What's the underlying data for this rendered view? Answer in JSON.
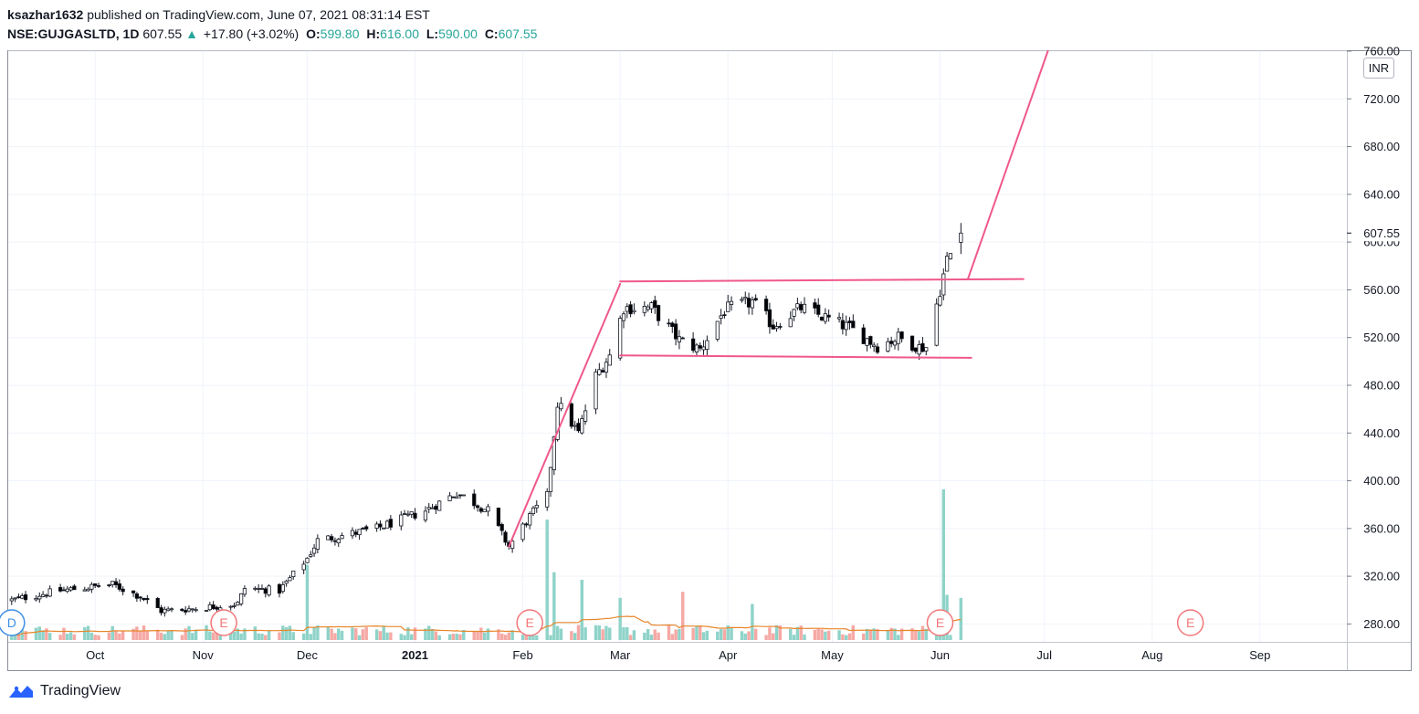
{
  "header": {
    "author": "ksazhar1632",
    "published": "published on TradingView.com, June 07, 2021 08:31:14 EST",
    "symbol": "NSE:GUJGASLTD, 1D",
    "last": "607.55",
    "change_arrow": "▲",
    "change": "+17.80 (+3.02%)",
    "o_label": "O:",
    "o_value": "599.80",
    "h_label": "H:",
    "h_value": "616.00",
    "l_label": "L:",
    "l_value": "590.00",
    "c_label": "C:",
    "c_value": "607.55"
  },
  "currency": "INR",
  "price_tag": "607.55",
  "brand": "TradingView",
  "colors": {
    "up": "#ffffff",
    "down": "#000000",
    "wick": "#131722",
    "vol_up": "#8fd3c9",
    "vol_down": "#f5a9a5",
    "vol_ma": "#e8862b",
    "trendline": "#f0588a",
    "earnings": "#f2777a",
    "dividend": "#3d8fe6",
    "header_green": "#26a69a"
  },
  "markers": {
    "dividend": "D",
    "earnings": "E"
  },
  "chart_data": {
    "type": "candlestick",
    "ylim": [
      265,
      760
    ],
    "yticks": [
      760,
      720,
      680,
      640,
      600,
      560,
      520,
      480,
      440,
      400,
      360,
      320,
      280
    ],
    "ytick_labels": [
      "760.00",
      "720.00",
      "680.00",
      "640.00",
      "600.00",
      "560.00",
      "520.00",
      "480.00",
      "440.00",
      "400.00",
      "360.00",
      "320.00",
      "280.00"
    ],
    "xticks": [
      {
        "label": "Oct",
        "date": "2020-10-01"
      },
      {
        "label": "Nov",
        "date": "2020-11-01"
      },
      {
        "label": "Dec",
        "date": "2020-12-01"
      },
      {
        "label": "2021",
        "date": "2021-01-01",
        "bold": true
      },
      {
        "label": "Feb",
        "date": "2021-02-01"
      },
      {
        "label": "Mar",
        "date": "2021-03-01"
      },
      {
        "label": "Apr",
        "date": "2021-04-01"
      },
      {
        "label": "May",
        "date": "2021-05-01"
      },
      {
        "label": "Jun",
        "date": "2021-06-01"
      },
      {
        "label": "Jul",
        "date": "2021-07-01"
      },
      {
        "label": "Aug",
        "date": "2021-08-01"
      },
      {
        "label": "Sep",
        "date": "2021-09-01"
      }
    ],
    "xlim": [
      "2020-09-06",
      "2021-09-26"
    ],
    "anchor_points": [
      {
        "date": "2020-09-07",
        "close": 300
      },
      {
        "date": "2020-09-21",
        "close": 308
      },
      {
        "date": "2020-10-06",
        "close": 313
      },
      {
        "date": "2020-10-14",
        "close": 303
      },
      {
        "date": "2020-10-20",
        "close": 291
      },
      {
        "date": "2020-10-30",
        "close": 293
      },
      {
        "date": "2020-11-11",
        "close": 297
      },
      {
        "date": "2020-11-13",
        "close": 310
      },
      {
        "date": "2020-11-23",
        "close": 308
      },
      {
        "date": "2020-12-01",
        "close": 335
      },
      {
        "date": "2020-12-04",
        "close": 350
      },
      {
        "date": "2020-12-21",
        "close": 360
      },
      {
        "date": "2021-01-04",
        "close": 375
      },
      {
        "date": "2021-01-13",
        "close": 390
      },
      {
        "date": "2021-01-22",
        "close": 375
      },
      {
        "date": "2021-01-28",
        "close": 345
      },
      {
        "date": "2021-02-03",
        "close": 370
      },
      {
        "date": "2021-02-08",
        "close": 387
      },
      {
        "date": "2021-02-11",
        "close": 465
      },
      {
        "date": "2021-02-17",
        "close": 440
      },
      {
        "date": "2021-02-22",
        "close": 488
      },
      {
        "date": "2021-02-26",
        "close": 505
      },
      {
        "date": "2021-03-02",
        "close": 545
      },
      {
        "date": "2021-03-10",
        "close": 545
      },
      {
        "date": "2021-03-18",
        "close": 518
      },
      {
        "date": "2021-03-24",
        "close": 510
      },
      {
        "date": "2021-03-31",
        "close": 543
      },
      {
        "date": "2021-04-08",
        "close": 550
      },
      {
        "date": "2021-04-14",
        "close": 530
      },
      {
        "date": "2021-04-22",
        "close": 545
      },
      {
        "date": "2021-05-06",
        "close": 528
      },
      {
        "date": "2021-05-14",
        "close": 513
      },
      {
        "date": "2021-05-20",
        "close": 520
      },
      {
        "date": "2021-05-26",
        "close": 512
      },
      {
        "date": "2021-05-28",
        "close": 512
      },
      {
        "date": "2021-06-01",
        "close": 560
      },
      {
        "date": "2021-06-03",
        "close": 585
      },
      {
        "date": "2021-06-04",
        "close": 590
      },
      {
        "date": "2021-06-07",
        "close": 607.55
      }
    ],
    "last_bar": {
      "date": "2021-06-07",
      "open": 599.8,
      "high": 616.0,
      "low": 590.0,
      "close": 607.55
    },
    "trendlines": [
      {
        "name": "flag-pole-1",
        "from": {
          "date": "2021-01-28",
          "price": 345
        },
        "to": {
          "date": "2021-03-01",
          "price": 565
        }
      },
      {
        "name": "range-top",
        "from": {
          "date": "2021-03-01",
          "price": 567
        },
        "to": {
          "date": "2021-06-25",
          "price": 569
        }
      },
      {
        "name": "range-bottom",
        "from": {
          "date": "2021-03-01",
          "price": 505
        },
        "to": {
          "date": "2021-06-10",
          "price": 503
        }
      },
      {
        "name": "projection",
        "from": {
          "date": "2021-06-09",
          "price": 569
        },
        "to": {
          "date": "2021-07-02",
          "price": 760
        }
      }
    ],
    "event_markers": [
      {
        "type": "D",
        "date": "2020-09-07"
      },
      {
        "type": "E",
        "date": "2020-11-07"
      },
      {
        "type": "E",
        "date": "2021-02-03"
      },
      {
        "type": "E",
        "date": "2021-06-01"
      },
      {
        "type": "E",
        "date": "2021-08-12"
      }
    ],
    "volume_spikes": [
      {
        "date": "2020-12-01",
        "rel": 0.5
      },
      {
        "date": "2021-02-08",
        "rel": 0.8
      },
      {
        "date": "2021-02-10",
        "rel": 0.45
      },
      {
        "date": "2021-02-18",
        "rel": 0.4
      },
      {
        "date": "2021-03-01",
        "rel": 0.28
      },
      {
        "date": "2021-03-19",
        "rel": 0.32
      },
      {
        "date": "2021-04-08",
        "rel": 0.24
      },
      {
        "date": "2021-06-02",
        "rel": 1.0
      },
      {
        "date": "2021-06-03",
        "rel": 0.3
      },
      {
        "date": "2021-06-07",
        "rel": 0.28
      }
    ],
    "grid": true
  }
}
